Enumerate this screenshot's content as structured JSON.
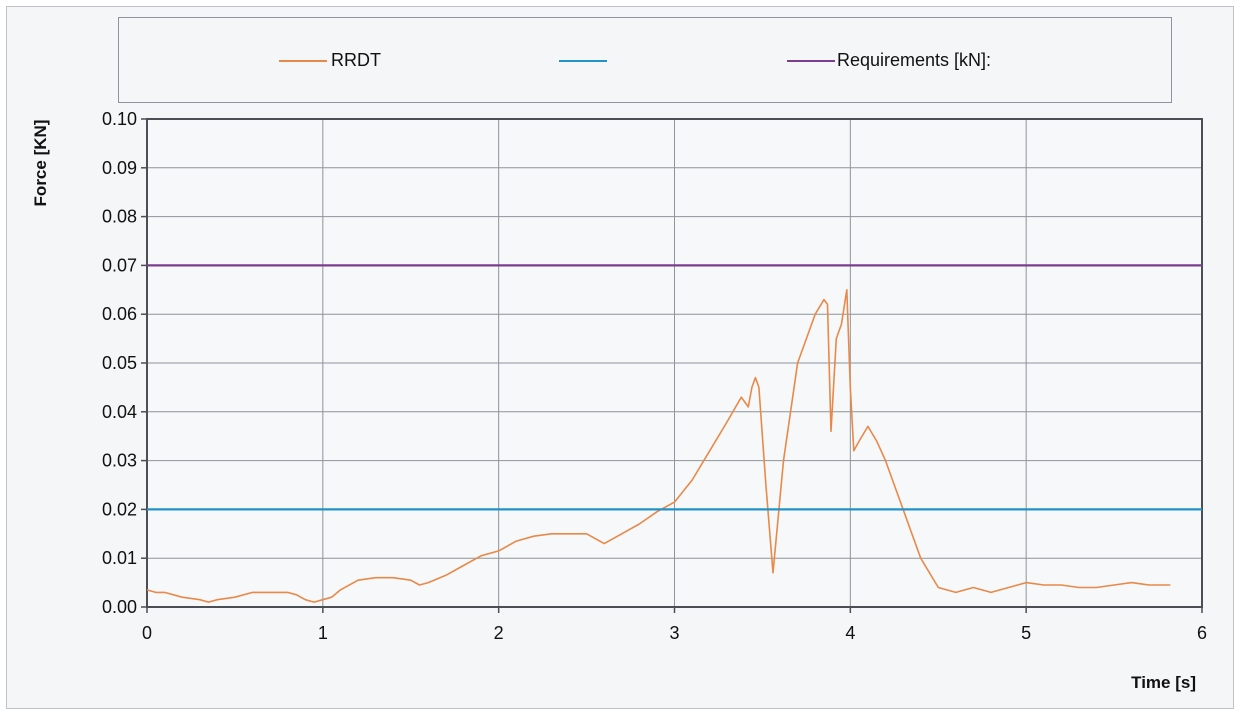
{
  "chart_data": {
    "type": "line",
    "xlabel": "Time [s]",
    "ylabel": "Force [KN]",
    "xlim": [
      0,
      6
    ],
    "ylim": [
      0,
      0.1
    ],
    "x_ticks": [
      "0",
      "1",
      "2",
      "3",
      "4",
      "5",
      "6"
    ],
    "y_ticks": [
      "0.00",
      "0.01",
      "0.02",
      "0.03",
      "0.04",
      "0.05",
      "0.06",
      "0.07",
      "0.08",
      "0.09",
      "0.10"
    ],
    "grid": true,
    "legend_position": "top",
    "series": [
      {
        "name": "RRDT",
        "color": "#e8894a",
        "x": [
          0,
          0.05,
          0.1,
          0.2,
          0.3,
          0.35,
          0.4,
          0.5,
          0.6,
          0.7,
          0.8,
          0.85,
          0.9,
          0.95,
          1.0,
          1.05,
          1.1,
          1.2,
          1.3,
          1.4,
          1.5,
          1.55,
          1.6,
          1.7,
          1.8,
          1.9,
          2.0,
          2.1,
          2.2,
          2.3,
          2.4,
          2.5,
          2.6,
          2.7,
          2.8,
          2.9,
          3.0,
          3.1,
          3.2,
          3.3,
          3.38,
          3.42,
          3.44,
          3.46,
          3.48,
          3.52,
          3.56,
          3.62,
          3.7,
          3.75,
          3.8,
          3.85,
          3.87,
          3.89,
          3.92,
          3.95,
          3.98,
          4.0,
          4.02,
          4.05,
          4.1,
          4.15,
          4.2,
          4.3,
          4.4,
          4.5,
          4.6,
          4.7,
          4.8,
          4.9,
          5.0,
          5.1,
          5.2,
          5.3,
          5.4,
          5.5,
          5.6,
          5.7,
          5.82
        ],
        "values": [
          0.0035,
          0.003,
          0.003,
          0.002,
          0.0015,
          0.001,
          0.0015,
          0.002,
          0.003,
          0.003,
          0.003,
          0.0025,
          0.0015,
          0.001,
          0.0015,
          0.002,
          0.0035,
          0.0055,
          0.006,
          0.006,
          0.0055,
          0.0045,
          0.005,
          0.0065,
          0.0085,
          0.0105,
          0.0115,
          0.0135,
          0.0145,
          0.015,
          0.015,
          0.015,
          0.013,
          0.015,
          0.017,
          0.0195,
          0.0215,
          0.026,
          0.032,
          0.038,
          0.043,
          0.041,
          0.045,
          0.047,
          0.045,
          0.025,
          0.007,
          0.03,
          0.05,
          0.055,
          0.06,
          0.063,
          0.062,
          0.036,
          0.055,
          0.058,
          0.065,
          0.045,
          0.032,
          0.034,
          0.037,
          0.034,
          0.03,
          0.02,
          0.01,
          0.004,
          0.003,
          0.004,
          0.003,
          0.004,
          0.005,
          0.0045,
          0.0045,
          0.004,
          0.004,
          0.0045,
          0.005,
          0.0045,
          0.0045
        ]
      },
      {
        "name": "",
        "color": "#2293c9",
        "x": [
          0,
          6
        ],
        "values": [
          0.02,
          0.02
        ]
      },
      {
        "name": "Requirements [kN]:",
        "color": "#7a3d8f",
        "x": [
          0,
          6
        ],
        "values": [
          0.07,
          0.07
        ]
      }
    ]
  }
}
